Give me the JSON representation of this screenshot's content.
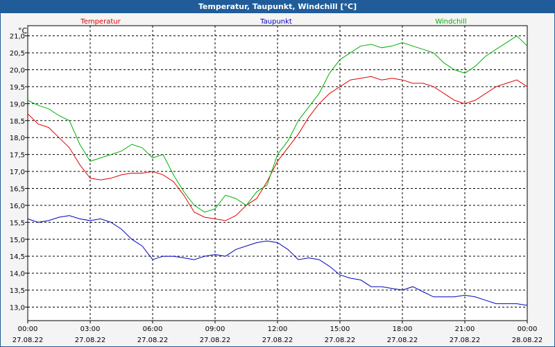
{
  "window": {
    "title": "Temperatur, Taupunkt, Windchill [°C]"
  },
  "chart_data": {
    "type": "line",
    "title": "Temperatur, Taupunkt, Windchill [°C]",
    "ylabel": "°C",
    "ylim": [
      12.6,
      21.3
    ],
    "xlim_hours": [
      0,
      24
    ],
    "grid": true,
    "legend_placement": "top",
    "y_ticks": [
      "21,0",
      "20,5",
      "20,0",
      "19,5",
      "19,0",
      "18,5",
      "18,0",
      "17,5",
      "17,0",
      "16,5",
      "16,0",
      "15,5",
      "15,0",
      "14,5",
      "14,0",
      "13,5",
      "13,0"
    ],
    "x_ticks": [
      {
        "time": "00:00",
        "date": "27.08.22"
      },
      {
        "time": "03:00",
        "date": "27.08.22"
      },
      {
        "time": "06:00",
        "date": "27.08.22"
      },
      {
        "time": "09:00",
        "date": "27.08.22"
      },
      {
        "time": "12:00",
        "date": "27.08.22"
      },
      {
        "time": "15:00",
        "date": "27.08.22"
      },
      {
        "time": "18:00",
        "date": "27.08.22"
      },
      {
        "time": "21:00",
        "date": "27.08.22"
      },
      {
        "time": "00:00",
        "date": "28.08.22"
      }
    ],
    "series": [
      {
        "name": "Temperatur",
        "color": "#e00000",
        "x": [
          0,
          0.5,
          1,
          1.5,
          2,
          2.5,
          3,
          3.5,
          4,
          4.5,
          5,
          5.5,
          6,
          6.5,
          7,
          7.5,
          8,
          8.5,
          9,
          9.5,
          10,
          10.5,
          11,
          11.5,
          12,
          12.5,
          13,
          13.5,
          14,
          14.5,
          15,
          15.5,
          16,
          16.5,
          17,
          17.5,
          18,
          18.5,
          19,
          19.5,
          20,
          20.5,
          21,
          21.5,
          22,
          22.5,
          23,
          23.5,
          24
        ],
        "values": [
          18.7,
          18.4,
          18.3,
          18.0,
          17.7,
          17.2,
          16.8,
          16.75,
          16.8,
          16.9,
          16.95,
          16.95,
          17.0,
          16.9,
          16.7,
          16.3,
          15.8,
          15.65,
          15.6,
          15.55,
          15.7,
          16.0,
          16.2,
          16.7,
          17.3,
          17.7,
          18.1,
          18.6,
          19.0,
          19.3,
          19.5,
          19.7,
          19.75,
          19.8,
          19.7,
          19.75,
          19.7,
          19.6,
          19.6,
          19.5,
          19.3,
          19.1,
          19.0,
          19.1,
          19.3,
          19.5,
          19.6,
          19.7,
          19.5
        ]
      },
      {
        "name": "Taupunkt",
        "color": "#0000c0",
        "x": [
          0,
          0.5,
          1,
          1.5,
          2,
          2.5,
          3,
          3.5,
          4,
          4.5,
          5,
          5.5,
          6,
          6.5,
          7,
          7.5,
          8,
          8.5,
          9,
          9.5,
          10,
          10.5,
          11,
          11.5,
          12,
          12.5,
          13,
          13.5,
          14,
          14.5,
          15,
          15.5,
          16,
          16.5,
          17,
          17.5,
          18,
          18.5,
          19,
          19.5,
          20,
          20.5,
          21,
          21.5,
          22,
          22.5,
          23,
          23.5,
          24
        ],
        "values": [
          15.6,
          15.5,
          15.55,
          15.65,
          15.7,
          15.6,
          15.55,
          15.6,
          15.5,
          15.3,
          15.0,
          14.8,
          14.4,
          14.5,
          14.5,
          14.45,
          14.4,
          14.5,
          14.55,
          14.5,
          14.7,
          14.8,
          14.9,
          14.95,
          14.9,
          14.7,
          14.4,
          14.45,
          14.4,
          14.2,
          13.95,
          13.85,
          13.8,
          13.6,
          13.6,
          13.55,
          13.5,
          13.6,
          13.45,
          13.3,
          13.3,
          13.3,
          13.35,
          13.3,
          13.2,
          13.1,
          13.1,
          13.1,
          13.05
        ]
      },
      {
        "name": "Windchill",
        "color": "#00b000",
        "x": [
          0,
          0.5,
          1,
          1.5,
          2,
          2.5,
          3,
          3.5,
          4,
          4.5,
          5,
          5.5,
          6,
          6.5,
          7,
          7.5,
          8,
          8.5,
          9,
          9.5,
          10,
          10.5,
          11,
          11.5,
          12,
          12.5,
          13,
          13.5,
          14,
          14.5,
          15,
          15.5,
          16,
          16.5,
          17,
          17.5,
          18,
          18.5,
          19,
          19.5,
          20,
          20.5,
          21,
          21.5,
          22,
          22.5,
          23,
          23.5,
          24
        ],
        "values": [
          19.1,
          18.95,
          18.85,
          18.65,
          18.5,
          17.8,
          17.3,
          17.4,
          17.5,
          17.6,
          17.8,
          17.7,
          17.4,
          17.5,
          16.9,
          16.4,
          16.0,
          15.8,
          15.9,
          16.3,
          16.2,
          16.0,
          16.4,
          16.6,
          17.5,
          17.9,
          18.5,
          18.9,
          19.3,
          19.9,
          20.3,
          20.5,
          20.7,
          20.75,
          20.65,
          20.7,
          20.8,
          20.7,
          20.6,
          20.5,
          20.2,
          20.0,
          19.9,
          20.1,
          20.4,
          20.6,
          20.8,
          21.0,
          20.7
        ]
      }
    ]
  }
}
